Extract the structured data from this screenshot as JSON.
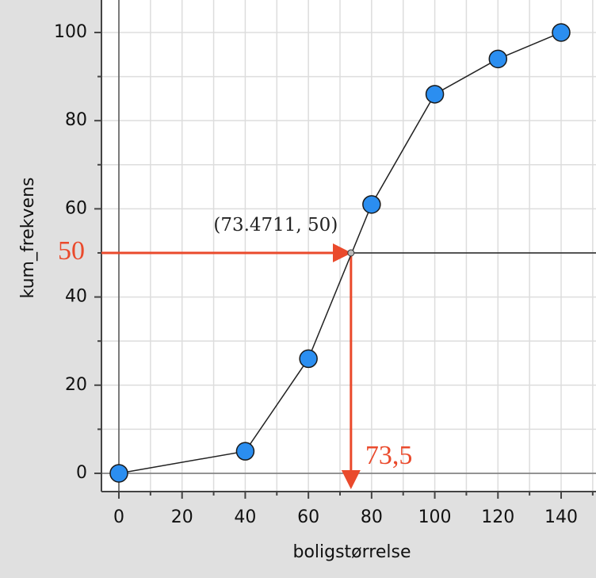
{
  "chart_data": {
    "type": "line",
    "x_label": "boligstørrelse",
    "y_label": "kum_frekvens",
    "x": [
      0,
      40,
      60,
      80,
      100,
      120,
      140
    ],
    "series": [
      {
        "name": "kum_frekvens",
        "color": "#2b8ef0",
        "values": [
          0,
          5,
          26,
          61,
          86,
          94,
          100
        ]
      }
    ],
    "xlim": [
      -5.52,
      151.04
    ],
    "ylim": [
      -4.14,
      107.37
    ],
    "xticks": [
      0,
      20,
      40,
      60,
      80,
      100,
      120,
      140
    ],
    "yticks": [
      0,
      20,
      40,
      60,
      80,
      100
    ],
    "minor_xticks": [
      10,
      30,
      50,
      70,
      90,
      110,
      130,
      150
    ],
    "minor_yticks": [
      10,
      30,
      50,
      70,
      90
    ],
    "grid": true,
    "marker": {
      "x": 73.4711,
      "y": 50,
      "label": "(73.4711, 50)"
    },
    "x_marker_label": "73,5",
    "y_marker_label": "50",
    "annotation_color": "#ea4a2c"
  }
}
